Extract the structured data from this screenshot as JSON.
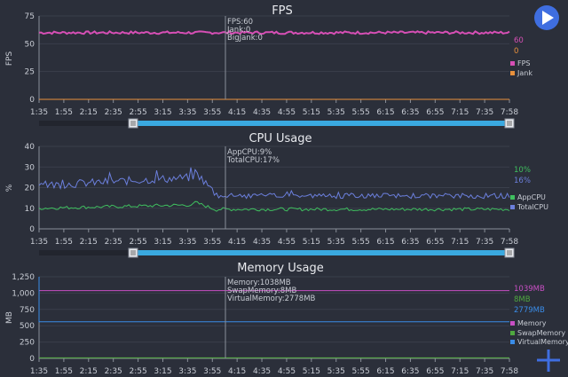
{
  "colors": {
    "background": "#2b2f3a",
    "fps": "#d64fb5",
    "jank": "#e8903c",
    "app_cpu": "#3fbf5f",
    "total_cpu": "#6b7fdc",
    "memory": "#c84fc4",
    "swap_memory": "#4fa83f",
    "virtual_memory": "#3a8ce8",
    "slider": "#3aa9e0",
    "play_button": "#3f6ee0",
    "add_button": "#3f6ee0"
  },
  "x_ticks": [
    "1:35",
    "1:55",
    "2:15",
    "2:35",
    "2:55",
    "3:15",
    "3:35",
    "3:55",
    "4:15",
    "4:35",
    "4:55",
    "5:15",
    "5:35",
    "5:55",
    "6:15",
    "6:35",
    "6:55",
    "7:15",
    "7:35",
    "7:58"
  ],
  "cursor_time": "4:06",
  "chart_data": [
    {
      "type": "line",
      "title": "FPS",
      "ylabel": "FPS",
      "ylim": [
        0,
        75
      ],
      "y_ticks": [
        "0",
        "25",
        "50",
        "75"
      ],
      "y_tick_values": [
        0,
        25,
        50,
        75
      ],
      "tooltip": [
        "FPS:60",
        "Jank:0",
        "BigJank:0"
      ],
      "current_values": [
        "60",
        "0"
      ],
      "series": [
        {
          "name": "FPS",
          "color": "#d64fb5",
          "baseline": 60,
          "noise": 1.2
        },
        {
          "name": "Jank",
          "color": "#e8903c",
          "baseline": 0,
          "noise": 0
        }
      ],
      "legend": [
        "FPS",
        "Jank"
      ],
      "slider_range": [
        0.2,
        1.0
      ]
    },
    {
      "type": "line",
      "title": "CPU Usage",
      "ylabel": "%",
      "ylim": [
        0,
        40
      ],
      "y_ticks": [
        "0",
        "10",
        "20",
        "30",
        "40"
      ],
      "y_tick_values": [
        0,
        10,
        20,
        30,
        40
      ],
      "tooltip": [
        "AppCPU:9%",
        "TotalCPU:17%"
      ],
      "current_values": [
        "10%",
        "16%"
      ],
      "series": [
        {
          "name": "AppCPU",
          "color": "#3fbf5f",
          "baseline": 10
        },
        {
          "name": "TotalCPU",
          "color": "#6b7fdc",
          "baseline": 17
        }
      ],
      "legend": [
        "AppCPU",
        "TotalCPU"
      ],
      "slider_range": [
        0.2,
        1.0
      ]
    },
    {
      "type": "line",
      "title": "Memory Usage",
      "ylabel": "MB",
      "ylim": [
        0,
        1250
      ],
      "y_ticks": [
        "0",
        "250",
        "500",
        "750",
        "1,000",
        "1,250"
      ],
      "y_tick_values": [
        0,
        250,
        500,
        750,
        1000,
        1250
      ],
      "tooltip": [
        "Memory:1038MB",
        "SwapMemory:8MB",
        "VirtualMemory:2778MB"
      ],
      "current_values": [
        "1039MB",
        "8MB",
        "2779MB"
      ],
      "series": [
        {
          "name": "Memory",
          "color": "#c84fc4",
          "baseline": 1038
        },
        {
          "name": "SwapMemory",
          "color": "#4fa83f",
          "baseline": 8
        },
        {
          "name": "VirtualMemory",
          "color": "#3a8ce8",
          "baseline": 2778
        }
      ],
      "legend": [
        "Memory",
        "SwapMemory",
        "VirtualMemory"
      ]
    }
  ]
}
